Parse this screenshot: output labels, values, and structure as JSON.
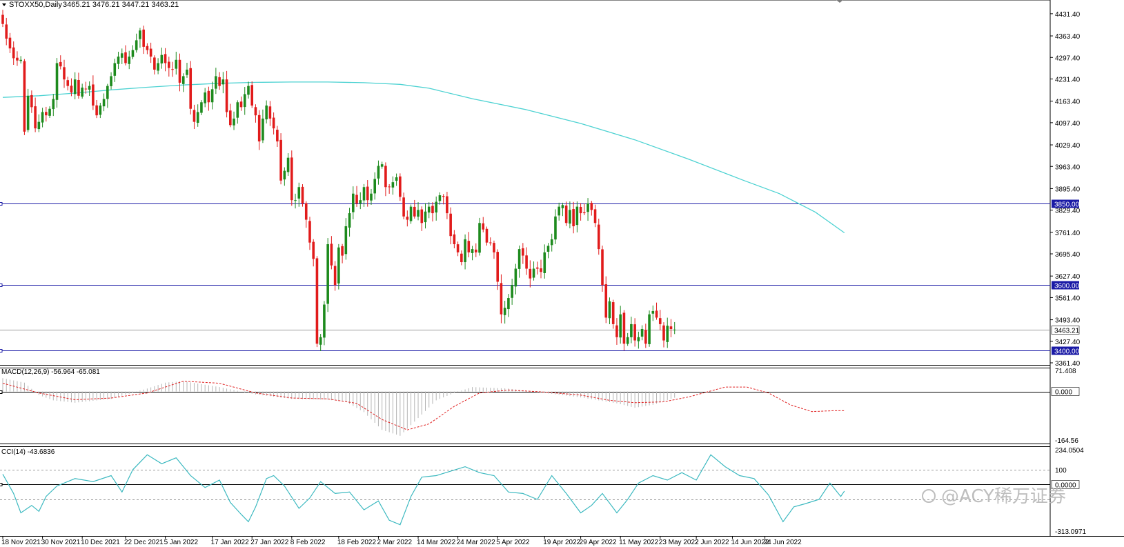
{
  "chart_data": {
    "type": "candlestick",
    "symbol_header": "STOXX50,Daily",
    "ohlc_header": "3465.21 3476.21 3447.21 3463.21",
    "price_axis": {
      "range": [
        3361.41,
        4465.0
      ],
      "tick_labels": [
        "4431.40",
        "4363.40",
        "4297.40",
        "4231.40",
        "4163.40",
        "4097.40",
        "4029.40",
        "3963.40",
        "3895.40",
        "3829.40",
        "3761.40",
        "3695.40",
        "3627.40",
        "3561.40",
        "3493.40",
        "3427.40",
        "3361.40"
      ],
      "ticks": [
        4431.4,
        4363.4,
        4297.4,
        4231.4,
        4163.4,
        4097.4,
        4029.4,
        3963.4,
        3895.4,
        3829.4,
        3761.4,
        3695.4,
        3627.4,
        3561.4,
        3493.4,
        3427.4,
        3361.4
      ]
    },
    "horizontal_levels": [
      {
        "value": 3850.0,
        "label": "3850.00",
        "color": "#1a1aa6"
      },
      {
        "value": 3600.0,
        "label": "3600.00",
        "color": "#1a1aa6"
      },
      {
        "value": 3400.0,
        "label": "3400.00",
        "color": "#1a1aa6"
      }
    ],
    "current_price": {
      "value": 3463.21,
      "label": "3463.21"
    },
    "x_labels": [
      "18 Nov 2021",
      "30 Nov 2021",
      "10 Dec 2021",
      "22 Dec 2021",
      "5 Jan 2022",
      "17 Jan 2022",
      "27 Jan 2022",
      "8 Feb 2022",
      "18 Feb 2022",
      "2 Mar 2022",
      "14 Mar 2022",
      "24 Mar 2022",
      "5 Apr 2022",
      "19 Apr 2022",
      "29 Apr 2022",
      "11 May 2022",
      "23 May 2022",
      "2 Jun 2022",
      "14 Jun 2022",
      "24 Jun 2022"
    ],
    "closes": [
      4400,
      4355,
      4325,
      4295,
      4288,
      4290,
      4070,
      4180,
      4145,
      4080,
      4100,
      4130,
      4120,
      4140,
      4170,
      4280,
      4270,
      4230,
      4210,
      4190,
      4230,
      4180,
      4205,
      4200,
      4210,
      4150,
      4120,
      4150,
      4170,
      4210,
      4240,
      4280,
      4300,
      4310,
      4280,
      4300,
      4320,
      4350,
      4380,
      4330,
      4320,
      4300,
      4260,
      4280,
      4305,
      4280,
      4265,
      4260,
      4290,
      4220,
      4240,
      4260,
      4140,
      4100,
      4130,
      4160,
      4190,
      4160,
      4200,
      4240,
      4210,
      4230,
      4130,
      4090,
      4110,
      4160,
      4145,
      4185,
      4210,
      4150,
      4120,
      4040,
      4110,
      4150,
      4110,
      4080,
      4040,
      3920,
      3950,
      3990,
      3860,
      3860,
      3900,
      3850,
      3800,
      3730,
      3680,
      3420,
      3440,
      3540,
      3725,
      3660,
      3600,
      3715,
      3690,
      3780,
      3820,
      3880,
      3850,
      3860,
      3900,
      3860,
      3880,
      3925,
      3965,
      3970,
      3900,
      3900,
      3915,
      3930,
      3870,
      3810,
      3800,
      3840,
      3810,
      3830,
      3790,
      3825,
      3840,
      3820,
      3855,
      3875,
      3870,
      3820,
      3750,
      3725,
      3700,
      3670,
      3740,
      3700,
      3710,
      3700,
      3790,
      3770,
      3730,
      3730,
      3700,
      3610,
      3510,
      3530,
      3560,
      3600,
      3650,
      3710,
      3690,
      3650,
      3620,
      3650,
      3650,
      3640,
      3700,
      3720,
      3740,
      3810,
      3840,
      3845,
      3790,
      3830,
      3780,
      3840,
      3820,
      3820,
      3850,
      3830,
      3790,
      3710,
      3600,
      3500,
      3550,
      3480,
      3440,
      3510,
      3420,
      3440,
      3480,
      3430,
      3440,
      3465,
      3420,
      3510,
      3520,
      3500,
      3480,
      3430,
      3475,
      3465,
      3463.21
    ],
    "moving_average": {
      "color": "#4dd2d2",
      "points": [
        [
          0,
          4175
        ],
        [
          10,
          4180
        ],
        [
          20,
          4188
        ],
        [
          30,
          4198
        ],
        [
          40,
          4206
        ],
        [
          50,
          4213
        ],
        [
          60,
          4218
        ],
        [
          70,
          4221
        ],
        [
          80,
          4222
        ],
        [
          90,
          4222
        ],
        [
          100,
          4220
        ],
        [
          110,
          4215
        ],
        [
          118,
          4203
        ],
        [
          130,
          4171
        ],
        [
          145,
          4137
        ],
        [
          160,
          4095
        ],
        [
          175,
          4045
        ],
        [
          190,
          3985
        ],
        [
          205,
          3921
        ],
        [
          215,
          3880
        ],
        [
          225,
          3823
        ],
        [
          233,
          3760
        ]
      ]
    },
    "macd": {
      "label": "MACD(12,26,9) -56.964 -65.081",
      "range": [
        -164.56,
        71.408
      ],
      "tick_labels": [
        "71.408",
        "0.000",
        "-164.56"
      ],
      "ticks": [
        71.408,
        0,
        -164.56
      ],
      "signal_color": "#e02020",
      "histogram_color": "#b4b4b4",
      "histogram": [
        [
          0,
          45
        ],
        [
          6,
          30
        ],
        [
          10,
          -12
        ],
        [
          14,
          -30
        ],
        [
          20,
          -38
        ],
        [
          30,
          -25
        ],
        [
          40,
          10
        ],
        [
          45,
          30
        ],
        [
          50,
          35
        ],
        [
          60,
          15
        ],
        [
          70,
          -10
        ],
        [
          80,
          -25
        ],
        [
          90,
          -28
        ],
        [
          95,
          -35
        ],
        [
          100,
          -70
        ],
        [
          105,
          -130
        ],
        [
          110,
          -150
        ],
        [
          115,
          -90
        ],
        [
          120,
          -30
        ],
        [
          125,
          -5
        ],
        [
          130,
          15
        ],
        [
          140,
          10
        ],
        [
          150,
          -5
        ],
        [
          160,
          -20
        ],
        [
          170,
          -40
        ],
        [
          175,
          -55
        ],
        [
          180,
          -45
        ],
        [
          185,
          -25
        ],
        [
          190,
          -5
        ],
        [
          200,
          20
        ],
        [
          205,
          30
        ],
        [
          210,
          5
        ],
        [
          215,
          -40
        ],
        [
          222,
          -70
        ],
        [
          227,
          -75
        ],
        [
          230,
          -65
        ],
        [
          233,
          -57
        ]
      ],
      "signal": [
        [
          0,
          28
        ],
        [
          10,
          -5
        ],
        [
          20,
          -28
        ],
        [
          30,
          -22
        ],
        [
          40,
          -5
        ],
        [
          50,
          35
        ],
        [
          60,
          28
        ],
        [
          70,
          -5
        ],
        [
          80,
          -22
        ],
        [
          90,
          -25
        ],
        [
          98,
          -40
        ],
        [
          105,
          -95
        ],
        [
          112,
          -130
        ],
        [
          118,
          -110
        ],
        [
          125,
          -50
        ],
        [
          132,
          -5
        ],
        [
          140,
          5
        ],
        [
          150,
          -2
        ],
        [
          160,
          -12
        ],
        [
          168,
          -30
        ],
        [
          175,
          -38
        ],
        [
          183,
          -35
        ],
        [
          190,
          -18
        ],
        [
          200,
          15
        ],
        [
          206,
          15
        ],
        [
          212,
          -5
        ],
        [
          218,
          -45
        ],
        [
          224,
          -68
        ],
        [
          230,
          -65
        ],
        [
          233,
          -65
        ]
      ]
    },
    "cci": {
      "label": "CCI(14) -43.6836",
      "range": [
        -313.0971,
        234.0504
      ],
      "tick_labels": [
        "234.0504",
        "100",
        "0.0000",
        "-313.0971"
      ],
      "ticks": [
        234.0504,
        100,
        0,
        -313.0971
      ],
      "levels": [
        100,
        0,
        -100
      ],
      "color": "#3cb9c0",
      "points": [
        [
          0,
          70
        ],
        [
          3,
          -60
        ],
        [
          5,
          -190
        ],
        [
          8,
          -140
        ],
        [
          10,
          -180
        ],
        [
          12,
          -80
        ],
        [
          15,
          -10
        ],
        [
          20,
          40
        ],
        [
          25,
          20
        ],
        [
          30,
          60
        ],
        [
          33,
          -50
        ],
        [
          36,
          100
        ],
        [
          40,
          200
        ],
        [
          44,
          140
        ],
        [
          48,
          180
        ],
        [
          52,
          60
        ],
        [
          56,
          -20
        ],
        [
          60,
          30
        ],
        [
          63,
          -120
        ],
        [
          66,
          -200
        ],
        [
          68,
          -250
        ],
        [
          70,
          -150
        ],
        [
          73,
          40
        ],
        [
          75,
          60
        ],
        [
          78,
          -10
        ],
        [
          82,
          -160
        ],
        [
          85,
          -90
        ],
        [
          88,
          20
        ],
        [
          92,
          -60
        ],
        [
          96,
          -50
        ],
        [
          100,
          -170
        ],
        [
          104,
          -110
        ],
        [
          107,
          -240
        ],
        [
          110,
          -270
        ],
        [
          113,
          -80
        ],
        [
          116,
          50
        ],
        [
          120,
          60
        ],
        [
          124,
          90
        ],
        [
          128,
          120
        ],
        [
          132,
          80
        ],
        [
          136,
          60
        ],
        [
          140,
          -50
        ],
        [
          144,
          -60
        ],
        [
          148,
          -100
        ],
        [
          152,
          60
        ],
        [
          156,
          -60
        ],
        [
          160,
          -190
        ],
        [
          163,
          -140
        ],
        [
          166,
          -60
        ],
        [
          170,
          -190
        ],
        [
          173,
          -100
        ],
        [
          176,
          10
        ],
        [
          180,
          60
        ],
        [
          184,
          30
        ],
        [
          188,
          80
        ],
        [
          192,
          30
        ],
        [
          196,
          200
        ],
        [
          200,
          120
        ],
        [
          204,
          60
        ],
        [
          208,
          40
        ],
        [
          212,
          -70
        ],
        [
          216,
          -250
        ],
        [
          219,
          -150
        ],
        [
          222,
          -130
        ],
        [
          226,
          -100
        ],
        [
          229,
          10
        ],
        [
          232,
          -80
        ],
        [
          233,
          -43.68
        ]
      ]
    },
    "colors": {
      "bull": "#1d8a1d",
      "bear": "#e11b1b",
      "level": "#1a1aa6",
      "current": "#999999"
    }
  },
  "watermark": "@ACY稀万证券"
}
